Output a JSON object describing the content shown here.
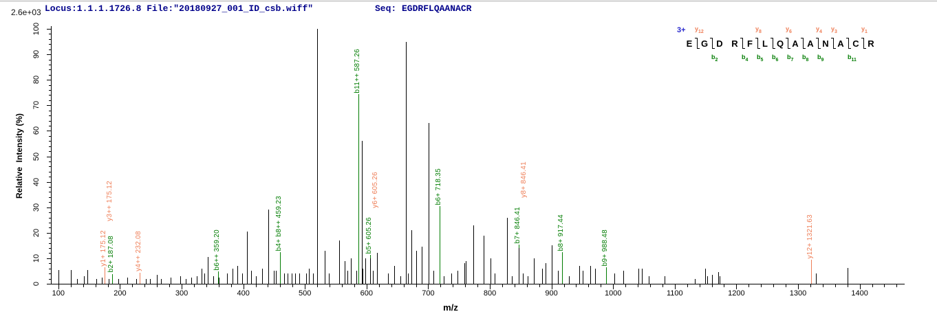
{
  "header": {
    "locus_file": "Locus:1.1.1.1726.8 File:\"20180927_001_ID_csb.wiff\"",
    "seq_label": "Seq: EGDRFLQAANACR",
    "max_intensity": "2.6e+03"
  },
  "colors": {
    "b_ion": "#007c00",
    "y_ion": "#ee7e57",
    "header_text": "#00008b",
    "charge_text": "#2727cc",
    "peak": "#000000",
    "axis": "#000000"
  },
  "peptide_map": {
    "charge": "3+",
    "residues": [
      "E",
      "G",
      "D",
      "R",
      "F",
      "L",
      "Q",
      "A",
      "A",
      "N",
      "A",
      "C",
      "R"
    ],
    "cleavages": [
      {
        "after": 0,
        "y": "y12"
      },
      {
        "after": 1,
        "b": "b2"
      },
      {
        "after": 3,
        "b": "b4"
      },
      {
        "after": 4,
        "y": "y8",
        "b": "b5"
      },
      {
        "after": 5,
        "b": "b6"
      },
      {
        "after": 6,
        "y": "y6",
        "b": "b7"
      },
      {
        "after": 7,
        "b": "b8"
      },
      {
        "after": 8,
        "y": "y4",
        "b": "b9"
      },
      {
        "after": 9,
        "y": "y3"
      },
      {
        "after": 10,
        "b": "b11"
      },
      {
        "after": 11,
        "y": "y1"
      }
    ]
  },
  "chart_data": {
    "type": "bar",
    "chart_kind": "ms2-fragment-ion-spectrum",
    "title": "",
    "xlabel": "m/z",
    "ylabel": "Relative  Intensity (%)",
    "y_max_absolute_label": "2.6e+03",
    "xlim": [
      89,
      1473
    ],
    "ylim": [
      0,
      100
    ],
    "x_ticks": {
      "label_start": 100,
      "label_end": 1400,
      "major_step": 100,
      "minor_step": 20,
      "minor_end": 1460
    },
    "y_ticks": {
      "major_step": 10,
      "minor_step": 2
    },
    "legend": "none",
    "grid": false,
    "peaks": [
      [
        100,
        5.5
      ],
      [
        120,
        5.5
      ],
      [
        130,
        2
      ],
      [
        141,
        3
      ],
      [
        147,
        5.5
      ],
      [
        162,
        2
      ],
      [
        171,
        2.5
      ],
      [
        182,
        2
      ],
      [
        197,
        2
      ],
      [
        212,
        2.5
      ],
      [
        226,
        2
      ],
      [
        242,
        2
      ],
      [
        249,
        2
      ],
      [
        260,
        3.5
      ],
      [
        267,
        2
      ],
      [
        282,
        2.5
      ],
      [
        298,
        3
      ],
      [
        307,
        2
      ],
      [
        316,
        2.5
      ],
      [
        324,
        3
      ],
      [
        332,
        6
      ],
      [
        337,
        4
      ],
      [
        342,
        10.5
      ],
      [
        351,
        3
      ],
      [
        360,
        2.5
      ],
      [
        374,
        4
      ],
      [
        383,
        6
      ],
      [
        390,
        7
      ],
      [
        398,
        4
      ],
      [
        406,
        20.5
      ],
      [
        413,
        5
      ],
      [
        421,
        3
      ],
      [
        430,
        6
      ],
      [
        441,
        29
      ],
      [
        449,
        5
      ],
      [
        453,
        5
      ],
      [
        466,
        4
      ],
      [
        472,
        4
      ],
      [
        479,
        4
      ],
      [
        484,
        4
      ],
      [
        491,
        4
      ],
      [
        502,
        4
      ],
      [
        506,
        6
      ],
      [
        513,
        4
      ],
      [
        520,
        100
      ],
      [
        532,
        13
      ],
      [
        539,
        4
      ],
      [
        556,
        17
      ],
      [
        564,
        9
      ],
      [
        569,
        5
      ],
      [
        575,
        10
      ],
      [
        584,
        5
      ],
      [
        592,
        56
      ],
      [
        594,
        6
      ],
      [
        598,
        10
      ],
      [
        610,
        5
      ],
      [
        617,
        12
      ],
      [
        635,
        4
      ],
      [
        645,
        7
      ],
      [
        655,
        3
      ],
      [
        664,
        95
      ],
      [
        667,
        4
      ],
      [
        673,
        21
      ],
      [
        681,
        13
      ],
      [
        690,
        14.5
      ],
      [
        701,
        63
      ],
      [
        708,
        5
      ],
      [
        725,
        3
      ],
      [
        738,
        4
      ],
      [
        747,
        5
      ],
      [
        759,
        8
      ],
      [
        761,
        9
      ],
      [
        773,
        23
      ],
      [
        790,
        19
      ],
      [
        801,
        10
      ],
      [
        808,
        4
      ],
      [
        828,
        26
      ],
      [
        836,
        3
      ],
      [
        854,
        4
      ],
      [
        861,
        3
      ],
      [
        871,
        10
      ],
      [
        885,
        6
      ],
      [
        890,
        8
      ],
      [
        900,
        15
      ],
      [
        910,
        5
      ],
      [
        928,
        3
      ],
      [
        945,
        7
      ],
      [
        951,
        5
      ],
      [
        963,
        7
      ],
      [
        971,
        6
      ],
      [
        1002,
        4
      ],
      [
        1016,
        5
      ],
      [
        1041,
        6
      ],
      [
        1047,
        6
      ],
      [
        1058,
        3
      ],
      [
        1084,
        3
      ],
      [
        1133,
        2
      ],
      [
        1149,
        6
      ],
      [
        1153,
        3
      ],
      [
        1161,
        3.5
      ],
      [
        1170,
        4.5
      ],
      [
        1173,
        3
      ],
      [
        1329,
        4
      ],
      [
        1380,
        6.3
      ]
    ],
    "annotated_peaks": [
      {
        "mz": 175.12,
        "intensity": 5,
        "peak_color": "y",
        "labels": [
          {
            "text": "y1+ 175.12",
            "ion": "y"
          },
          {
            "text": "y3++ 175.12",
            "ion": "y"
          }
        ]
      },
      {
        "mz": 187.08,
        "intensity": 2.5,
        "peak_color": "b",
        "labels": [
          {
            "text": "b2+ 187.08",
            "ion": "b"
          }
        ]
      },
      {
        "mz": 232.08,
        "intensity": 3,
        "peak_color": "y",
        "labels": [
          {
            "text": "y4++ 232.08",
            "ion": "y"
          }
        ]
      },
      {
        "mz": 359.2,
        "intensity": 3.5,
        "peak_color": "b",
        "labels": [
          {
            "text": "b6++ 359.20",
            "ion": "b"
          }
        ]
      },
      {
        "mz": 459.23,
        "intensity": 11,
        "peak_color": "b",
        "labels": [
          {
            "text": "b4+ b8++ 459.23",
            "ion": "b"
          }
        ]
      },
      {
        "mz": 587.26,
        "intensity": 73,
        "peak_color": "b",
        "labels": [
          {
            "text": "b11++ 587.26",
            "ion": "b"
          }
        ]
      },
      {
        "mz": 605.26,
        "intensity": 10,
        "peak_color": "black",
        "labels": [
          {
            "text": "b5+ 605.26",
            "ion": "b"
          },
          {
            "text": "y6+ 605.26",
            "ion": "y"
          }
        ]
      },
      {
        "mz": 718.35,
        "intensity": 29,
        "peak_color": "b",
        "labels": [
          {
            "text": "b6+ 718.35",
            "ion": "b"
          }
        ]
      },
      {
        "mz": 846.41,
        "intensity": 14,
        "peak_color": "black",
        "labels": [
          {
            "text": "b7+ 846.41",
            "ion": "b"
          },
          {
            "text": "y8+ 846.41",
            "ion": "y"
          }
        ]
      },
      {
        "mz": 917.44,
        "intensity": 11,
        "peak_color": "b",
        "labels": [
          {
            "text": "b8+ 917.44",
            "ion": "b"
          }
        ]
      },
      {
        "mz": 988.48,
        "intensity": 5,
        "peak_color": "b",
        "labels": [
          {
            "text": "b9+ 988.48",
            "ion": "b"
          }
        ]
      },
      {
        "mz": 1321.63,
        "intensity": 8,
        "peak_color": "y",
        "labels": [
          {
            "text": "y12+ 1321.63",
            "ion": "y"
          }
        ]
      }
    ]
  }
}
